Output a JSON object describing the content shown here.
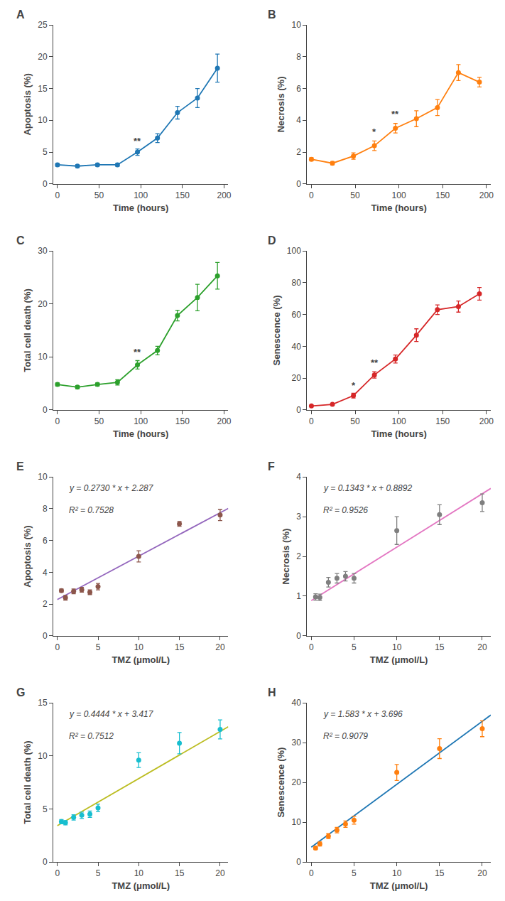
{
  "chart_data": [
    {
      "type": "line",
      "label": "A",
      "xlabel": "Time (hours)",
      "ylabel": "Apoptosis (%)",
      "xlim": [
        -5,
        205
      ],
      "xticks": [
        0,
        50,
        100,
        150,
        200
      ],
      "ylim": [
        0,
        25
      ],
      "yticks": [
        0,
        5,
        10,
        15,
        20,
        25
      ],
      "grid": false,
      "series": [
        {
          "type": "line",
          "marker": "circle",
          "line_style": "solid",
          "x": [
            0,
            24,
            48,
            72,
            96,
            120,
            144,
            168,
            192
          ],
          "values": [
            3.0,
            2.8,
            3.0,
            3.0,
            5.0,
            7.2,
            11.2,
            13.5,
            18.2
          ],
          "yerr": [
            0.2,
            0.2,
            0.2,
            0.2,
            0.5,
            0.7,
            1.0,
            1.5,
            2.2
          ]
        }
      ],
      "annotations": [
        {
          "x": 96,
          "y": 5.7,
          "text": "**"
        }
      ]
    },
    {
      "type": "line",
      "label": "B",
      "xlabel": "Time (hours)",
      "ylabel": "Necrosis (%)",
      "xlim": [
        -5,
        205
      ],
      "xticks": [
        0,
        50,
        100,
        150,
        200
      ],
      "ylim": [
        0,
        10
      ],
      "yticks": [
        0,
        2,
        4,
        6,
        8,
        10
      ],
      "grid": false,
      "series": [
        {
          "type": "line",
          "marker": "circle",
          "line_style": "solid",
          "x": [
            0,
            24,
            48,
            72,
            96,
            120,
            144,
            168,
            192
          ],
          "values": [
            1.55,
            1.3,
            1.75,
            2.4,
            3.5,
            4.1,
            4.8,
            7.0,
            6.4
          ],
          "yerr": [
            0.1,
            0.1,
            0.2,
            0.3,
            0.3,
            0.5,
            0.5,
            0.5,
            0.3
          ]
        }
      ],
      "annotations": [
        {
          "x": 72,
          "y": 2.85,
          "text": "*"
        },
        {
          "x": 96,
          "y": 3.95,
          "text": "**"
        }
      ]
    },
    {
      "type": "line",
      "label": "C",
      "xlabel": "Time (hours)",
      "ylabel": "Total cell death (%)",
      "xlim": [
        -5,
        205
      ],
      "xticks": [
        0,
        50,
        100,
        150,
        200
      ],
      "ylim": [
        0,
        30
      ],
      "yticks": [
        0,
        10,
        20,
        30
      ],
      "grid": false,
      "series": [
        {
          "type": "line",
          "marker": "circle",
          "line_style": "solid",
          "x": [
            0,
            24,
            48,
            72,
            96,
            120,
            144,
            168,
            192
          ],
          "values": [
            4.8,
            4.3,
            4.8,
            5.2,
            8.5,
            11.2,
            17.8,
            21.2,
            25.3
          ],
          "yerr": [
            0.3,
            0.3,
            0.3,
            0.5,
            0.8,
            0.8,
            1.0,
            2.5,
            2.5
          ]
        }
      ],
      "annotations": [
        {
          "x": 96,
          "y": 9.6,
          "text": "**"
        }
      ]
    },
    {
      "type": "line",
      "label": "D",
      "xlabel": "Time (hours)",
      "ylabel": "Senescence (%)",
      "xlim": [
        -5,
        205
      ],
      "xticks": [
        0,
        50,
        100,
        150,
        200
      ],
      "ylim": [
        0,
        100
      ],
      "yticks": [
        0,
        20,
        40,
        60,
        80,
        100
      ],
      "grid": false,
      "series": [
        {
          "type": "line",
          "marker": "circle",
          "line_style": "solid",
          "x": [
            0,
            24,
            48,
            72,
            96,
            120,
            144,
            168,
            192
          ],
          "values": [
            2.5,
            3.5,
            9.0,
            22.0,
            32.0,
            47.0,
            63.0,
            65.0,
            73.0
          ],
          "yerr": [
            0.3,
            0.5,
            1.5,
            2.0,
            2.5,
            4.0,
            3.0,
            3.5,
            4.0
          ]
        }
      ],
      "annotations": [
        {
          "x": 48,
          "y": 11.0,
          "text": "*"
        },
        {
          "x": 72,
          "y": 25.5,
          "text": "**"
        }
      ]
    },
    {
      "type": "scatter",
      "label": "E",
      "xlabel": "TMZ (μmol/L)",
      "ylabel": "Apoptosis (%)",
      "xlim": [
        -0.5,
        21
      ],
      "xticks": [
        0,
        5,
        10,
        15,
        20
      ],
      "ylim": [
        0,
        10
      ],
      "yticks": [
        0,
        2,
        4,
        6,
        8,
        10
      ],
      "grid": false,
      "series": [
        {
          "type": "line",
          "line_style": "solid",
          "x": [
            0,
            21
          ],
          "values": [
            2.287,
            8.02
          ]
        },
        {
          "type": "scatter",
          "marker": "circle",
          "x": [
            0.5,
            1.0,
            2.0,
            3.0,
            4.0,
            5.0,
            10.0,
            15.0,
            20.0
          ],
          "values": [
            2.85,
            2.4,
            2.8,
            2.9,
            2.75,
            3.1,
            5.0,
            7.05,
            7.6
          ],
          "yerr": [
            0.1,
            0.15,
            0.15,
            0.15,
            0.15,
            0.2,
            0.35,
            0.15,
            0.35
          ]
        }
      ],
      "annotations": [
        {
          "text": "y = 0.2730 * x + 2.287"
        },
        {
          "text": "R² = 0.7528"
        }
      ]
    },
    {
      "type": "scatter",
      "label": "F",
      "xlabel": "TMZ (μmol/L)",
      "ylabel": "Necrosis (%)",
      "xlim": [
        -0.5,
        21
      ],
      "xticks": [
        0,
        5,
        10,
        15,
        20
      ],
      "ylim": [
        0,
        4
      ],
      "yticks": [
        0,
        1,
        2,
        3,
        4
      ],
      "grid": false,
      "series": [
        {
          "type": "line",
          "line_style": "solid",
          "x": [
            0,
            21
          ],
          "values": [
            0.8892,
            3.7095
          ]
        },
        {
          "type": "scatter",
          "marker": "circle",
          "x": [
            0.5,
            1.0,
            2.0,
            3.0,
            4.0,
            5.0,
            10.0,
            15.0,
            20.0
          ],
          "values": [
            0.98,
            0.97,
            1.35,
            1.45,
            1.5,
            1.45,
            2.65,
            3.05,
            3.35
          ],
          "yerr": [
            0.08,
            0.08,
            0.12,
            0.12,
            0.12,
            0.12,
            0.35,
            0.25,
            0.22
          ]
        }
      ],
      "annotations": [
        {
          "text": "y = 0.1343 * x + 0.8892"
        },
        {
          "text": "R² = 0.9526"
        }
      ]
    },
    {
      "type": "scatter",
      "label": "G",
      "xlabel": "TMZ (μmol/L)",
      "ylabel": "Total cell death (%)",
      "xlim": [
        -0.5,
        21
      ],
      "xticks": [
        0,
        5,
        10,
        15,
        20
      ],
      "ylim": [
        0,
        15
      ],
      "yticks": [
        0,
        5,
        10,
        15
      ],
      "grid": false,
      "series": [
        {
          "type": "line",
          "line_style": "solid",
          "x": [
            0,
            21
          ],
          "values": [
            3.417,
            12.7494
          ]
        },
        {
          "type": "scatter",
          "marker": "circle",
          "x": [
            0.5,
            1.0,
            2.0,
            3.0,
            4.0,
            5.0,
            10.0,
            15.0,
            20.0
          ],
          "values": [
            3.8,
            3.7,
            4.2,
            4.4,
            4.5,
            5.1,
            9.6,
            11.2,
            12.5
          ],
          "yerr": [
            0.2,
            0.2,
            0.25,
            0.3,
            0.3,
            0.35,
            0.7,
            1.0,
            0.9
          ]
        }
      ],
      "annotations": [
        {
          "text": "y = 0.4444 * x + 3.417"
        },
        {
          "text": "R² = 0.7512"
        }
      ]
    },
    {
      "type": "scatter",
      "label": "H",
      "xlabel": "TMZ (μmol/L)",
      "ylabel": "Senescence (%)",
      "xlim": [
        -0.5,
        21
      ],
      "xticks": [
        0,
        5,
        10,
        15,
        20
      ],
      "ylim": [
        0,
        40
      ],
      "yticks": [
        0,
        10,
        20,
        30,
        40
      ],
      "grid": false,
      "series": [
        {
          "type": "line",
          "line_style": "solid",
          "x": [
            0,
            21
          ],
          "values": [
            3.696,
            36.939
          ]
        },
        {
          "type": "scatter",
          "marker": "circle",
          "x": [
            0.5,
            1.0,
            2.0,
            3.0,
            4.0,
            5.0,
            10.0,
            15.0,
            20.0
          ],
          "values": [
            3.5,
            4.5,
            6.5,
            8.0,
            9.5,
            10.5,
            22.5,
            28.5,
            33.5
          ],
          "yerr": [
            0.4,
            0.5,
            0.6,
            0.7,
            0.8,
            1.0,
            2.0,
            2.5,
            2.0
          ]
        }
      ],
      "annotations": [
        {
          "text": "y = 1.583 * x + 3.696"
        },
        {
          "text": "R² = 0.9079"
        }
      ]
    }
  ]
}
